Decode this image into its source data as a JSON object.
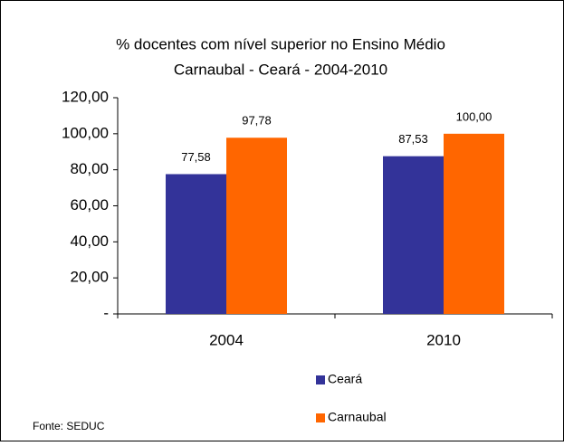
{
  "chart_data": {
    "type": "bar",
    "title": "% docentes com nível  superior no Ensino Médio",
    "subtitle": "Carnaubal -  Ceará - 2004-2010",
    "categories": [
      "2004",
      "2010"
    ],
    "series": [
      {
        "name": "Ceará",
        "color": "#333399",
        "values": [
          77.58,
          87.53
        ],
        "value_labels": [
          "77,58",
          "87,53"
        ]
      },
      {
        "name": "Carnaubal",
        "color": "#ff6600",
        "values": [
          97.78,
          100
        ],
        "value_labels": [
          "97,78",
          "100,00"
        ]
      }
    ],
    "ylim": [
      0,
      120
    ],
    "yticks": [
      {
        "value": 0,
        "label": "-"
      },
      {
        "value": 20,
        "label": "20,00"
      },
      {
        "value": 40,
        "label": "40,00"
      },
      {
        "value": 60,
        "label": "60,00"
      },
      {
        "value": 80,
        "label": "80,00"
      },
      {
        "value": 100,
        "label": "100,00"
      },
      {
        "value": 120,
        "label": "120,00"
      }
    ],
    "source": "Fonte: SEDUC"
  }
}
